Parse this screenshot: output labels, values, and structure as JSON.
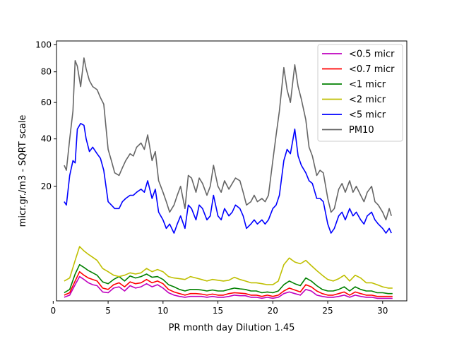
{
  "chart_data": {
    "type": "line",
    "xlabel": "PR month day  Dilution 1.45",
    "ylabel": "micr.gr./m3 - SQRT scale",
    "y_scale": "sqrt",
    "xlim": [
      0.3,
      32.2
    ],
    "ylim": [
      0,
      103
    ],
    "x_ticks": [
      0,
      5,
      10,
      15,
      20,
      25,
      30
    ],
    "y_ticks": [
      20,
      40,
      60,
      80,
      100
    ],
    "grid": false,
    "legend_position": "top-right",
    "series": [
      {
        "name": "<0.5 micr",
        "color": "#bf00bf",
        "x": [
          1.0,
          1.5,
          2.0,
          2.4,
          2.8,
          3.2,
          3.6,
          4.0,
          4.5,
          5.0,
          5.5,
          6.0,
          6.5,
          7.0,
          7.5,
          8.0,
          8.5,
          9.0,
          9.5,
          10.0,
          10.5,
          11.0,
          11.5,
          12.0,
          12.5,
          13.0,
          13.5,
          14.0,
          14.5,
          15.0,
          15.5,
          16.0,
          16.5,
          17.0,
          17.5,
          18.0,
          18.5,
          19.0,
          19.5,
          20.0,
          20.5,
          21.0,
          21.5,
          22.0,
          22.5,
          23.0,
          23.5,
          24.0,
          24.5,
          25.0,
          25.5,
          26.0,
          26.5,
          27.0,
          27.5,
          28.0,
          28.5,
          29.0,
          29.5,
          30.0,
          30.5,
          30.9
        ],
        "y": [
          0.02,
          0.05,
          0.4,
          0.9,
          0.7,
          0.5,
          0.4,
          0.35,
          0.12,
          0.1,
          0.25,
          0.3,
          0.15,
          0.35,
          0.25,
          0.3,
          0.45,
          0.3,
          0.4,
          0.25,
          0.1,
          0.05,
          0.03,
          0.02,
          0.03,
          0.03,
          0.03,
          0.02,
          0.03,
          0.02,
          0.02,
          0.03,
          0.05,
          0.04,
          0.04,
          0.02,
          0.02,
          0.01,
          0.02,
          0.01,
          0.02,
          0.08,
          0.12,
          0.08,
          0.05,
          0.2,
          0.15,
          0.05,
          0.03,
          0.02,
          0.02,
          0.03,
          0.05,
          0.02,
          0.05,
          0.03,
          0.02,
          0.02,
          0.01,
          0.01,
          0.01,
          0.01
        ]
      },
      {
        "name": "<0.7 micr",
        "color": "#ff0000",
        "x": [
          1.0,
          1.5,
          2.0,
          2.4,
          2.8,
          3.2,
          3.6,
          4.0,
          4.5,
          5.0,
          5.5,
          6.0,
          6.5,
          7.0,
          7.5,
          8.0,
          8.5,
          9.0,
          9.5,
          10.0,
          10.5,
          11.0,
          11.5,
          12.0,
          12.5,
          13.0,
          13.5,
          14.0,
          14.5,
          15.0,
          15.5,
          16.0,
          16.5,
          17.0,
          17.5,
          18.0,
          18.5,
          19.0,
          19.5,
          20.0,
          20.5,
          21.0,
          21.5,
          22.0,
          22.5,
          23.0,
          23.5,
          24.0,
          24.5,
          25.0,
          25.5,
          26.0,
          26.5,
          27.0,
          27.5,
          28.0,
          28.5,
          29.0,
          29.5,
          30.0,
          30.5,
          30.9
        ],
        "y": [
          0.05,
          0.1,
          0.6,
          1.3,
          1.0,
          0.8,
          0.7,
          0.6,
          0.25,
          0.2,
          0.4,
          0.5,
          0.3,
          0.55,
          0.45,
          0.5,
          0.7,
          0.5,
          0.6,
          0.45,
          0.2,
          0.12,
          0.08,
          0.05,
          0.08,
          0.08,
          0.07,
          0.05,
          0.07,
          0.05,
          0.05,
          0.08,
          0.1,
          0.09,
          0.08,
          0.05,
          0.05,
          0.03,
          0.05,
          0.03,
          0.05,
          0.15,
          0.25,
          0.18,
          0.12,
          0.4,
          0.3,
          0.15,
          0.08,
          0.05,
          0.05,
          0.08,
          0.12,
          0.05,
          0.12,
          0.08,
          0.05,
          0.05,
          0.03,
          0.03,
          0.03,
          0.03
        ]
      },
      {
        "name": "<1 micr",
        "color": "#008000",
        "x": [
          1.0,
          1.5,
          2.0,
          2.4,
          2.8,
          3.2,
          3.6,
          4.0,
          4.5,
          5.0,
          5.5,
          6.0,
          6.5,
          7.0,
          7.5,
          8.0,
          8.5,
          9.0,
          9.5,
          10.0,
          10.5,
          11.0,
          11.5,
          12.0,
          12.5,
          13.0,
          13.5,
          14.0,
          14.5,
          15.0,
          15.5,
          16.0,
          16.5,
          17.0,
          17.5,
          18.0,
          18.5,
          19.0,
          19.5,
          20.0,
          20.5,
          21.0,
          21.5,
          22.0,
          22.5,
          23.0,
          23.5,
          24.0,
          24.5,
          25.0,
          25.5,
          26.0,
          26.5,
          27.0,
          27.5,
          28.0,
          28.5,
          29.0,
          29.5,
          30.0,
          30.5,
          30.9
        ],
        "y": [
          0.1,
          0.2,
          1.1,
          2.0,
          1.7,
          1.4,
          1.2,
          1.0,
          0.55,
          0.45,
          0.7,
          0.9,
          0.6,
          0.95,
          0.8,
          0.9,
          1.1,
          0.85,
          0.9,
          0.7,
          0.4,
          0.3,
          0.2,
          0.15,
          0.2,
          0.2,
          0.18,
          0.15,
          0.18,
          0.15,
          0.15,
          0.2,
          0.25,
          0.22,
          0.2,
          0.15,
          0.15,
          0.1,
          0.12,
          0.1,
          0.15,
          0.4,
          0.6,
          0.45,
          0.35,
          0.8,
          0.6,
          0.35,
          0.2,
          0.15,
          0.15,
          0.2,
          0.3,
          0.15,
          0.3,
          0.2,
          0.15,
          0.15,
          0.1,
          0.1,
          0.08,
          0.08
        ]
      },
      {
        "name": "<2 micr",
        "color": "#bfbf00",
        "x": [
          1.0,
          1.5,
          2.0,
          2.4,
          2.8,
          3.2,
          3.6,
          4.0,
          4.5,
          5.0,
          5.5,
          6.0,
          6.5,
          7.0,
          7.5,
          8.0,
          8.5,
          9.0,
          9.5,
          10.0,
          10.5,
          11.0,
          11.5,
          12.0,
          12.5,
          13.0,
          13.5,
          14.0,
          14.5,
          15.0,
          15.5,
          16.0,
          16.5,
          17.0,
          17.5,
          18.0,
          18.5,
          19.0,
          19.5,
          20.0,
          20.5,
          21.0,
          21.5,
          22.0,
          22.5,
          23.0,
          23.5,
          24.0,
          24.5,
          25.0,
          25.5,
          26.0,
          26.5,
          27.0,
          27.5,
          28.0,
          28.5,
          29.0,
          29.5,
          30.0,
          30.5,
          30.9
        ],
        "y": [
          0.6,
          0.8,
          2.5,
          4.5,
          3.8,
          3.3,
          2.9,
          2.5,
          1.6,
          1.3,
          1.0,
          0.9,
          1.0,
          1.2,
          1.1,
          1.2,
          1.6,
          1.3,
          1.5,
          1.3,
          0.9,
          0.8,
          0.75,
          0.7,
          0.9,
          0.8,
          0.7,
          0.6,
          0.7,
          0.65,
          0.6,
          0.65,
          0.85,
          0.7,
          0.6,
          0.5,
          0.5,
          0.45,
          0.4,
          0.4,
          0.6,
          2.0,
          2.8,
          2.3,
          2.1,
          2.5,
          1.9,
          1.4,
          1.0,
          0.7,
          0.6,
          0.75,
          1.0,
          0.6,
          1.0,
          0.8,
          0.5,
          0.5,
          0.4,
          0.3,
          0.25,
          0.25
        ]
      },
      {
        "name": "<5 micr",
        "color": "#0000ff",
        "x": [
          1.0,
          1.2,
          1.5,
          1.8,
          2.0,
          2.2,
          2.5,
          2.8,
          3.0,
          3.3,
          3.6,
          4.0,
          4.3,
          4.6,
          5.0,
          5.3,
          5.6,
          6.0,
          6.3,
          6.6,
          7.0,
          7.3,
          7.6,
          8.0,
          8.3,
          8.6,
          9.0,
          9.3,
          9.6,
          10.0,
          10.3,
          10.6,
          11.0,
          11.3,
          11.6,
          12.0,
          12.3,
          12.6,
          13.0,
          13.3,
          13.6,
          14.0,
          14.3,
          14.6,
          15.0,
          15.3,
          15.6,
          16.0,
          16.3,
          16.6,
          17.0,
          17.3,
          17.6,
          18.0,
          18.3,
          18.6,
          19.0,
          19.3,
          19.6,
          20.0,
          20.3,
          20.6,
          21.0,
          21.3,
          21.6,
          22.0,
          22.3,
          22.6,
          23.0,
          23.3,
          23.6,
          24.0,
          24.3,
          24.6,
          25.0,
          25.3,
          25.6,
          26.0,
          26.3,
          26.6,
          27.0,
          27.3,
          27.6,
          28.0,
          28.3,
          28.6,
          29.0,
          29.3,
          29.6,
          30.0,
          30.3,
          30.6,
          30.8
        ],
        "y": [
          15,
          14,
          24,
          30,
          29,
          45,
          48,
          47,
          40,
          34,
          36,
          33,
          31,
          26,
          15,
          14,
          13,
          13,
          15,
          16,
          17,
          17,
          18,
          19,
          18,
          22,
          16,
          19,
          12,
          10,
          8,
          9,
          7,
          9,
          11,
          8,
          14,
          13,
          10,
          14,
          13,
          10,
          11,
          17,
          11,
          10,
          13,
          11,
          12,
          14,
          13,
          11,
          8,
          9,
          10,
          9,
          10,
          9,
          10,
          13,
          14,
          17,
          30,
          35,
          33,
          45,
          32,
          28,
          25,
          22,
          21,
          16,
          16,
          15,
          9,
          7,
          8,
          11,
          12,
          10,
          13,
          11,
          12,
          10,
          9,
          11,
          12,
          10,
          9,
          8,
          7,
          8,
          7
        ]
      },
      {
        "name": "PM10",
        "color": "#666666",
        "x": [
          1.0,
          1.2,
          1.5,
          1.8,
          2.0,
          2.2,
          2.5,
          2.8,
          3.0,
          3.3,
          3.6,
          4.0,
          4.3,
          4.6,
          5.0,
          5.3,
          5.6,
          6.0,
          6.3,
          6.6,
          7.0,
          7.3,
          7.6,
          8.0,
          8.3,
          8.6,
          9.0,
          9.3,
          9.6,
          10.0,
          10.3,
          10.6,
          11.0,
          11.3,
          11.6,
          12.0,
          12.3,
          12.6,
          13.0,
          13.3,
          13.6,
          14.0,
          14.3,
          14.6,
          15.0,
          15.3,
          15.6,
          16.0,
          16.3,
          16.6,
          17.0,
          17.3,
          17.6,
          18.0,
          18.3,
          18.6,
          19.0,
          19.3,
          19.6,
          20.0,
          20.3,
          20.6,
          21.0,
          21.3,
          21.6,
          22.0,
          22.3,
          22.6,
          23.0,
          23.3,
          23.6,
          24.0,
          24.3,
          24.6,
          25.0,
          25.3,
          25.6,
          26.0,
          26.3,
          26.6,
          27.0,
          27.3,
          27.6,
          28.0,
          28.3,
          28.6,
          29.0,
          29.3,
          29.6,
          30.0,
          30.3,
          30.6,
          30.8
        ],
        "y": [
          28,
          26,
          40,
          55,
          88,
          84,
          70,
          90,
          82,
          74,
          70,
          68,
          63,
          59,
          35,
          30,
          25,
          24,
          27,
          30,
          33,
          32,
          36,
          38,
          35,
          42,
          30,
          34,
          22,
          18,
          15,
          12,
          14,
          17,
          20,
          13,
          24,
          23,
          18,
          23,
          21,
          17,
          20,
          28,
          20,
          18,
          22,
          19,
          21,
          23,
          22,
          18,
          14,
          15,
          17,
          15,
          16,
          15,
          17,
          30,
          42,
          55,
          83,
          68,
          60,
          85,
          70,
          62,
          50,
          36,
          32,
          24,
          26,
          25,
          16,
          12,
          13,
          19,
          21,
          18,
          22,
          18,
          20,
          17,
          15,
          18,
          20,
          15,
          14,
          12,
          10,
          13,
          11
        ]
      }
    ]
  }
}
